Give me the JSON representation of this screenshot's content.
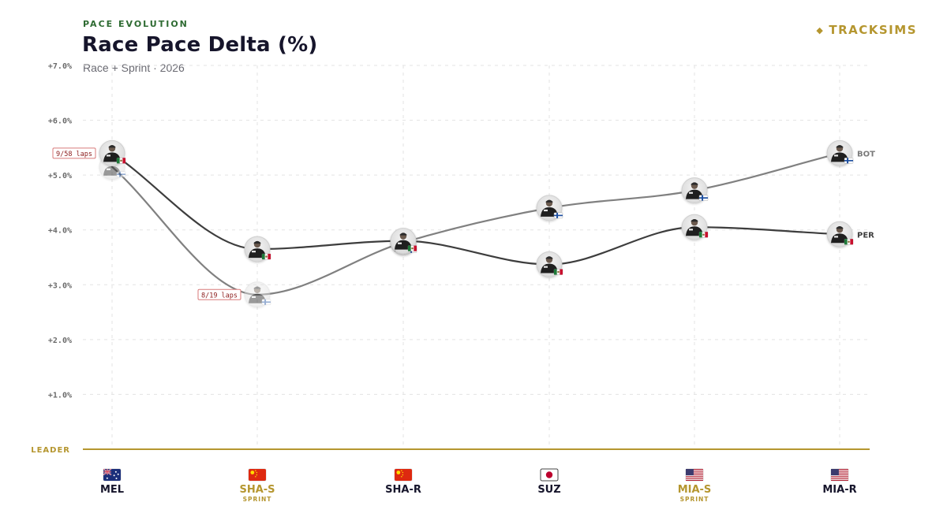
{
  "header": {
    "eyebrow": "PACE EVOLUTION",
    "title": "Race Pace Delta (%)",
    "subtitle": "Race + Sprint · 2026"
  },
  "brand": {
    "name": "TRACKSIMS",
    "icon": "diamond-icon",
    "color": "#b5962f"
  },
  "chart_data": {
    "type": "line",
    "title": "Race Pace Delta (%)",
    "subtitle": "Race + Sprint · 2026",
    "ylim": [
      0,
      7
    ],
    "y_ticks": [
      {
        "value": 1,
        "label": "+1.0%"
      },
      {
        "value": 2,
        "label": "+2.0%"
      },
      {
        "value": 3,
        "label": "+3.0%"
      },
      {
        "value": 4,
        "label": "+4.0%"
      },
      {
        "value": 5,
        "label": "+5.0%"
      },
      {
        "value": 6,
        "label": "+6.0%"
      },
      {
        "value": 7,
        "label": "+7.0%"
      }
    ],
    "baseline_label": "LEADER",
    "grid": true,
    "categories": [
      {
        "label": "MEL",
        "flag": "australia-flag",
        "sprint": false
      },
      {
        "label": "SHA-S",
        "flag": "china-flag",
        "sprint": true,
        "tag": "SPRINT"
      },
      {
        "label": "SHA-R",
        "flag": "china-flag",
        "sprint": false
      },
      {
        "label": "SUZ",
        "flag": "japan-flag",
        "sprint": false
      },
      {
        "label": "MIA-S",
        "flag": "usa-flag",
        "sprint": true,
        "tag": "SPRINT"
      },
      {
        "label": "MIA-R",
        "flag": "usa-flag",
        "sprint": false
      }
    ],
    "series": [
      {
        "name": "PER",
        "color": "#3d3d3d",
        "nationality_flag": "mexico-flag",
        "values": [
          5.4,
          3.65,
          3.8,
          3.37,
          4.05,
          3.92
        ],
        "partial": [
          null,
          null,
          null,
          null,
          null,
          null
        ]
      },
      {
        "name": "BOT",
        "color": "#808080",
        "nationality_flag": "finland-flag",
        "values": [
          5.15,
          2.82,
          3.77,
          4.4,
          4.72,
          5.4
        ],
        "partial": [
          null,
          null,
          null,
          null,
          null,
          null
        ]
      }
    ],
    "annotations": [
      {
        "category_index": 0,
        "series": "PER",
        "text": "9/58 laps"
      },
      {
        "category_index": 1,
        "series": "BOT",
        "text": "8/19 laps"
      }
    ],
    "colors": {
      "accent": "#b5962f",
      "annotation": "#c0392b",
      "grid": "#e3e3e3"
    }
  }
}
